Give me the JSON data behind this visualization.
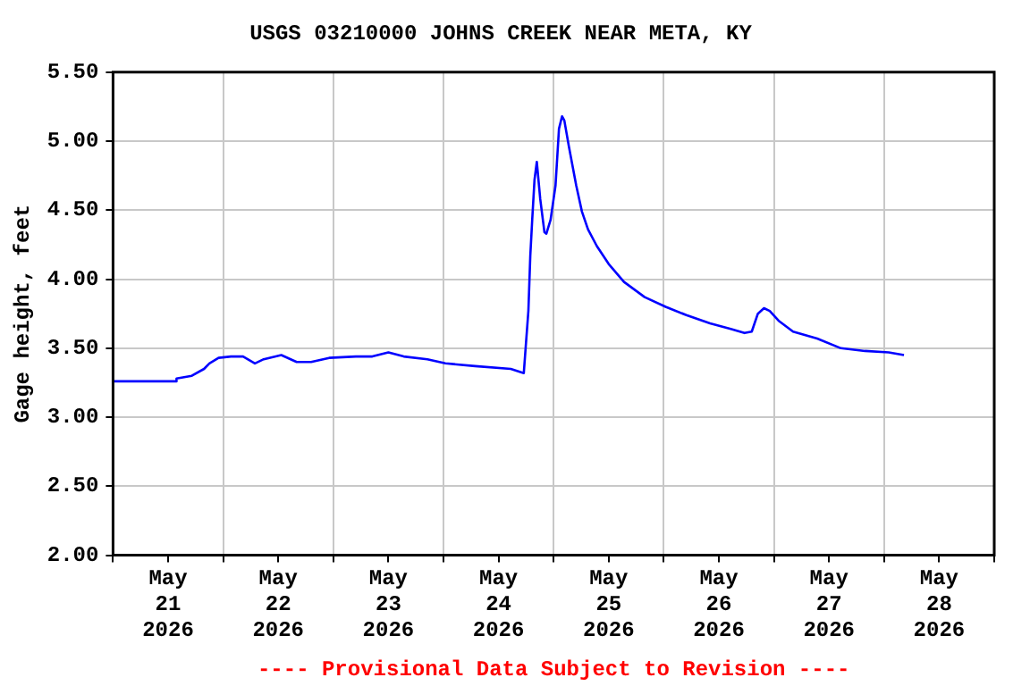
{
  "chart_data": {
    "type": "line",
    "title": "USGS 03210000 JOHNS CREEK NEAR META, KY",
    "ylabel": "Gage height, feet",
    "annotations": [
      "---- Provisional Data Subject to Revision ----"
    ],
    "xlim": [
      "2026-05-21T00:00",
      "2026-05-29T00:00"
    ],
    "xticks": [
      {
        "value": "2026-05-21T00:00",
        "label": null
      },
      {
        "value": "2026-05-21T12:00",
        "label": "May\n21\n2026"
      },
      {
        "value": "2026-05-22T00:00",
        "label": null
      },
      {
        "value": "2026-05-22T12:00",
        "label": "May\n22\n2026"
      },
      {
        "value": "2026-05-23T00:00",
        "label": null
      },
      {
        "value": "2026-05-23T12:00",
        "label": "May\n23\n2026"
      },
      {
        "value": "2026-05-24T00:00",
        "label": null
      },
      {
        "value": "2026-05-24T12:00",
        "label": "May\n24\n2026"
      },
      {
        "value": "2026-05-25T00:00",
        "label": null
      },
      {
        "value": "2026-05-25T12:00",
        "label": "May\n25\n2026"
      },
      {
        "value": "2026-05-26T00:00",
        "label": null
      },
      {
        "value": "2026-05-26T12:00",
        "label": "May\n26\n2026"
      },
      {
        "value": "2026-05-27T00:00",
        "label": null
      },
      {
        "value": "2026-05-27T12:00",
        "label": "May\n27\n2026"
      },
      {
        "value": "2026-05-28T00:00",
        "label": null
      },
      {
        "value": "2026-05-28T12:00",
        "label": "May\n28\n2026"
      },
      {
        "value": "2026-05-29T00:00",
        "label": null
      }
    ],
    "ylim": [
      2,
      5.5
    ],
    "yticks": [
      {
        "value": 2,
        "label": "2.00"
      },
      {
        "value": 2.5,
        "label": "2.50"
      },
      {
        "value": 3,
        "label": "3.00"
      },
      {
        "value": 3.5,
        "label": "3.50"
      },
      {
        "value": 4,
        "label": "4.00"
      },
      {
        "value": 4.5,
        "label": "4.50"
      },
      {
        "value": 5,
        "label": "5.00"
      },
      {
        "value": 5.5,
        "label": "5.50"
      }
    ],
    "grid": true,
    "marker": "none",
    "line_style": "solid",
    "x": [
      "2026-05-21T00:00",
      "2026-05-21T13:40",
      "2026-05-21T13:50",
      "2026-05-21T17:10",
      "2026-05-21T19:50",
      "2026-05-21T21:00",
      "2026-05-21T23:00",
      "2026-05-22T01:40",
      "2026-05-22T04:20",
      "2026-05-22T06:55",
      "2026-05-22T08:50",
      "2026-05-22T12:40",
      "2026-05-22T16:00",
      "2026-05-22T19:10",
      "2026-05-22T23:05",
      "2026-05-23T04:55",
      "2026-05-23T08:30",
      "2026-05-23T12:00",
      "2026-05-23T15:20",
      "2026-05-23T20:30",
      "2026-05-24T00:25",
      "2026-05-24T06:55",
      "2026-05-24T14:40",
      "2026-05-24T17:30",
      "2026-05-24T17:55",
      "2026-05-24T18:30",
      "2026-05-24T18:55",
      "2026-05-24T19:20",
      "2026-05-24T19:50",
      "2026-05-24T20:20",
      "2026-05-24T21:05",
      "2026-05-24T22:00",
      "2026-05-24T22:25",
      "2026-05-24T23:20",
      "2026-05-25T00:25",
      "2026-05-25T01:10",
      "2026-05-25T01:50",
      "2026-05-25T02:20",
      "2026-05-25T03:20",
      "2026-05-25T04:55",
      "2026-05-25T06:10",
      "2026-05-25T07:30",
      "2026-05-25T09:25",
      "2026-05-25T12:00",
      "2026-05-25T15:20",
      "2026-05-25T19:50",
      "2026-05-26T00:25",
      "2026-05-26T04:55",
      "2026-05-26T10:05",
      "2026-05-26T14:35",
      "2026-05-26T17:35",
      "2026-05-26T19:10",
      "2026-05-26T20:30",
      "2026-05-26T21:50",
      "2026-05-26T23:05",
      "2026-05-27T01:00",
      "2026-05-27T04:10",
      "2026-05-27T09:25",
      "2026-05-27T14:35",
      "2026-05-27T19:50",
      "2026-05-28T01:00",
      "2026-05-28T04:20"
    ],
    "series": [
      {
        "color": "#0000ff",
        "values": [
          3.26,
          3.26,
          3.28,
          3.3,
          3.35,
          3.39,
          3.43,
          3.44,
          3.44,
          3.39,
          3.42,
          3.45,
          3.4,
          3.4,
          3.43,
          3.44,
          3.44,
          3.47,
          3.44,
          3.42,
          3.39,
          3.37,
          3.35,
          3.32,
          3.51,
          3.77,
          4.17,
          4.43,
          4.72,
          4.85,
          4.58,
          4.34,
          4.33,
          4.43,
          4.68,
          5.09,
          5.18,
          5.15,
          4.96,
          4.68,
          4.49,
          4.36,
          4.24,
          4.11,
          3.98,
          3.87,
          3.8,
          3.74,
          3.68,
          3.64,
          3.61,
          3.62,
          3.75,
          3.79,
          3.77,
          3.7,
          3.62,
          3.57,
          3.5,
          3.48,
          3.47,
          3.45
        ]
      }
    ]
  }
}
